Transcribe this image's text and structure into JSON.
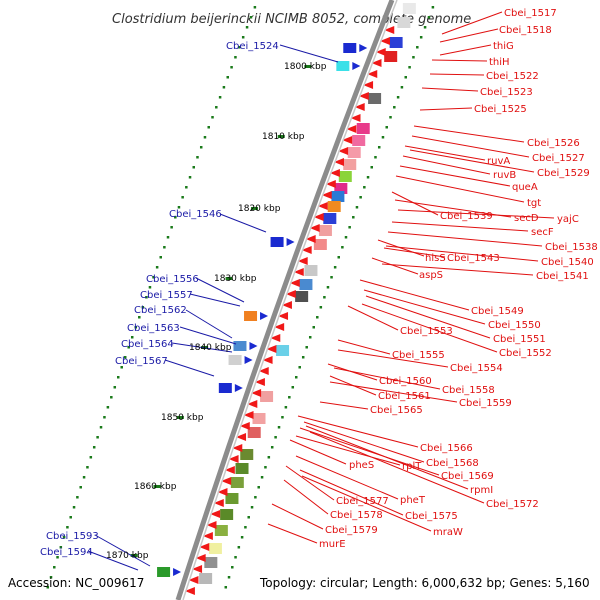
{
  "title": "Clostridium beijerinckii NCIMB 8052, complete genome",
  "footer": {
    "accession": "Accession: NC_009617",
    "topology": "Topology: circular; Length: 6,000,632 bp; Genes: 5,160"
  },
  "colors": {
    "forward_label": "#1a1aa6",
    "reverse_label": "#e01010",
    "backbone": "#8c8c8c",
    "tick": "#1a7a1a"
  },
  "kbp_ticks": [
    "1800 kbp",
    "1810 kbp",
    "1820 kbp",
    "1830 kbp",
    "1840 kbp",
    "1850 kbp",
    "1860 kbp",
    "1870 kbp"
  ],
  "forward_genes": [
    "Cbei_1524",
    "Cbei_1546",
    "Cbei_1556",
    "Cbei_1557",
    "Cbei_1562",
    "Cbei_1563",
    "Cbei_1564",
    "Cbei_1567",
    "Cbei_1593",
    "Cbei_1594"
  ],
  "reverse_genes": [
    "Cbei_1517",
    "Cbei_1518",
    "thiG",
    "thiH",
    "Cbei_1522",
    "Cbei_1523",
    "Cbei_1525",
    "Cbei_1526",
    "Cbei_1527",
    "ruvA",
    "ruvB",
    "Cbei_1529",
    "queA",
    "tgt",
    "Cbei_1539",
    "secD",
    "yajC",
    "secF",
    "Cbei_1538",
    "hisS",
    "Cbei_1543",
    "Cbei_1540",
    "aspS",
    "Cbei_1541",
    "Cbei_1549",
    "Cbei_1550",
    "Cbei_1551",
    "Cbei_1553",
    "Cbei_1552",
    "Cbei_1555",
    "Cbei_1554",
    "Cbei_1560",
    "Cbei_1558",
    "Cbei_1561",
    "Cbei_1559",
    "Cbei_1565",
    "Cbei_1566",
    "Cbei_1568",
    "pheS",
    "rplT",
    "Cbei_1569",
    "rpmI",
    "Cbei_1577",
    "pheT",
    "Cbei_1572",
    "Cbei_1578",
    "Cbei_1575",
    "Cbei_1579",
    "mraW",
    "murE"
  ]
}
